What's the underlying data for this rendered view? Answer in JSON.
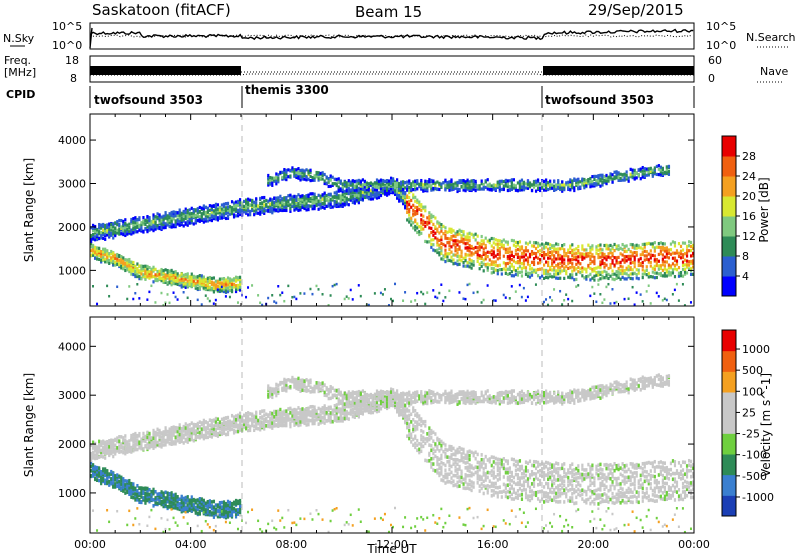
{
  "header": {
    "station": "Saskatoon (fitACF)",
    "beam": "Beam 15",
    "date": "29/Sep/2015"
  },
  "noise_panel": {
    "left_label": "N.Sky",
    "right_label": "N.Search",
    "left_ticks": [
      "10^5",
      "10^0"
    ],
    "right_ticks": [
      "10^5",
      "10^0"
    ]
  },
  "freq_panel": {
    "left_label_1": "Freq.",
    "left_label_2": "[MHz]",
    "right_label": "Nave",
    "left_ticks": [
      "18",
      "8"
    ],
    "right_ticks": [
      "60",
      "0"
    ],
    "cpid_label": "CPID"
  },
  "cpid_segments": [
    {
      "start": 0,
      "end": 6,
      "label": "twofsound 3503"
    },
    {
      "start": 6,
      "end": 18,
      "label": "themis 3300"
    },
    {
      "start": 18,
      "end": 24,
      "label": "twofsound 3503"
    }
  ],
  "chart_data": [
    {
      "type": "heatmap",
      "title": "",
      "xlabel": "",
      "ylabel": "Slant Range [km]",
      "ylim": [
        180,
        4600
      ],
      "xlim": [
        0,
        24
      ],
      "yticks": [
        "1000",
        "2000",
        "3000",
        "4000"
      ],
      "colorbar": {
        "label": "Power [dB]",
        "ticks": [
          "4",
          "8",
          "12",
          "16",
          "20",
          "24",
          "28"
        ],
        "colors": [
          "#0000ff",
          "#2b5fd0",
          "#2e8b57",
          "#7fc97f",
          "#d8e831",
          "#f4a020",
          "#f06010",
          "#e80000"
        ]
      }
    },
    {
      "type": "heatmap",
      "title": "",
      "xlabel": "Time UT",
      "ylabel": "Slant Range [km]",
      "ylim": [
        180,
        4600
      ],
      "xlim": [
        0,
        24
      ],
      "yticks": [
        "1000",
        "2000",
        "3000",
        "4000"
      ],
      "xticks": [
        "00:00",
        "04:00",
        "08:00",
        "12:00",
        "16:00",
        "20:00",
        "00:00"
      ],
      "colorbar": {
        "label": "Velocity [m s^-1]",
        "ticks": [
          "1000",
          "500",
          "100",
          "25",
          "-25",
          "-100",
          "-500",
          "-1000"
        ],
        "colors": [
          "#1b3fb5",
          "#3a7fd0",
          "#2e8b57",
          "#6fcf3f",
          "#c8c8c8",
          "#c8c8c8",
          "#f4a020",
          "#f06010",
          "#e80000"
        ]
      }
    }
  ],
  "echo_bands": [
    {
      "name": "near",
      "t": [
        0,
        1,
        2,
        3,
        4,
        5,
        6
      ],
      "r": [
        1500,
        1300,
        1000,
        900,
        800,
        700,
        750
      ]
    },
    {
      "name": "main",
      "t": [
        0,
        2,
        4,
        6,
        8,
        10,
        12,
        13,
        14,
        16,
        18,
        20,
        22,
        24
      ],
      "r": [
        1900,
        2100,
        2300,
        2500,
        2600,
        2700,
        3000,
        2300,
        1700,
        1400,
        1300,
        1250,
        1300,
        1350
      ]
    },
    {
      "name": "upper",
      "t": [
        7,
        8,
        9,
        10,
        19,
        20,
        21,
        22,
        23
      ],
      "r": [
        3100,
        3300,
        3200,
        3000,
        3000,
        3100,
        3200,
        3300,
        3350
      ]
    }
  ]
}
